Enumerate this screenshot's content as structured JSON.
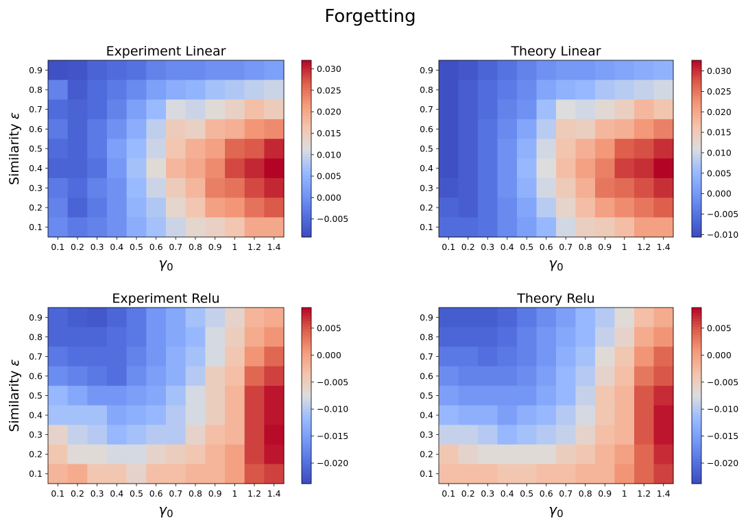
{
  "suptitle": "Forgetting",
  "chart_data": [
    {
      "type": "heatmap",
      "title": "Experiment Linear",
      "xlabel_symbol": "γ",
      "xlabel_subscript": "0",
      "ylabel": "Similarity",
      "ylabel_symbol": "ε",
      "x": [
        "0.1",
        "0.2",
        "0.3",
        "0.4",
        "0.5",
        "0.6",
        "0.7",
        "0.8",
        "0.9",
        "1",
        "1.2",
        "1.4"
      ],
      "y": [
        "0.9",
        "0.8",
        "0.7",
        "0.6",
        "0.5",
        "0.4",
        "0.3",
        "0.2",
        "0.1"
      ],
      "colormap": "coolwarm",
      "vmin": -0.0092,
      "vmax": 0.032,
      "colorbar_ticks": [
        -0.005,
        0.0,
        0.005,
        0.01,
        0.015,
        0.02,
        0.025,
        0.03
      ],
      "colorbar_tick_labels": [
        "−0.005",
        "0.000",
        "0.005",
        "0.010",
        "0.015",
        "0.020",
        "0.025",
        "0.030"
      ],
      "values": [
        [
          -0.0085,
          -0.008,
          -0.006,
          -0.005,
          -0.004,
          -0.002,
          -0.001,
          -0.001,
          0.0,
          0.0,
          0.001,
          0.002
        ],
        [
          -0.002,
          -0.007,
          -0.005,
          -0.003,
          -0.001,
          0.002,
          0.004,
          0.005,
          0.007,
          0.008,
          0.009,
          0.01
        ],
        [
          -0.005,
          -0.006,
          -0.005,
          -0.002,
          0.002,
          0.006,
          0.011,
          0.01,
          0.012,
          0.014,
          0.017,
          0.015
        ],
        [
          -0.003,
          -0.006,
          -0.003,
          0.0,
          0.004,
          0.009,
          0.015,
          0.014,
          0.018,
          0.019,
          0.022,
          0.023
        ],
        [
          -0.005,
          -0.006,
          -0.003,
          0.002,
          0.006,
          0.01,
          0.016,
          0.019,
          0.021,
          0.026,
          0.027,
          0.03
        ],
        [
          -0.006,
          -0.006,
          -0.004,
          0.001,
          0.007,
          0.012,
          0.018,
          0.02,
          0.023,
          0.028,
          0.03,
          0.032
        ],
        [
          -0.003,
          -0.005,
          -0.002,
          0.0,
          0.006,
          0.01,
          0.015,
          0.018,
          0.024,
          0.025,
          0.028,
          0.03
        ],
        [
          -0.002,
          -0.006,
          -0.003,
          0.0,
          0.005,
          0.008,
          0.013,
          0.016,
          0.021,
          0.022,
          0.025,
          0.027
        ],
        [
          -0.001,
          -0.003,
          -0.002,
          0.0,
          0.004,
          0.007,
          0.01,
          0.013,
          0.014,
          0.016,
          0.02,
          0.02
        ]
      ]
    },
    {
      "type": "heatmap",
      "title": "Theory Linear",
      "xlabel_symbol": "γ",
      "xlabel_subscript": "0",
      "ylabel": "",
      "ylabel_symbol": "",
      "x": [
        "0.1",
        "0.2",
        "0.3",
        "0.4",
        "0.5",
        "0.6",
        "0.7",
        "0.8",
        "0.9",
        "1",
        "1.2",
        "1.4"
      ],
      "y": [
        "0.9",
        "0.8",
        "0.7",
        "0.6",
        "0.5",
        "0.4",
        "0.3",
        "0.2",
        "0.1"
      ],
      "colormap": "coolwarm",
      "vmin": -0.0106,
      "vmax": 0.0326,
      "colorbar_ticks": [
        -0.01,
        -0.005,
        0.0,
        0.005,
        0.01,
        0.015,
        0.02,
        0.025,
        0.03
      ],
      "colorbar_tick_labels": [
        "−0.010",
        "−0.005",
        "0.000",
        "0.005",
        "0.010",
        "0.015",
        "0.020",
        "0.025",
        "0.030"
      ],
      "values": [
        [
          -0.01,
          -0.009,
          -0.007,
          -0.005,
          -0.003,
          -0.001,
          0.0,
          0.0,
          0.001,
          0.002,
          0.003,
          0.004
        ],
        [
          -0.01,
          -0.008,
          -0.006,
          -0.004,
          -0.002,
          0.002,
          0.004,
          0.005,
          0.007,
          0.008,
          0.009,
          0.01
        ],
        [
          -0.01,
          -0.008,
          -0.006,
          -0.003,
          -0.001,
          0.006,
          0.011,
          0.01,
          0.012,
          0.014,
          0.018,
          0.016
        ],
        [
          -0.01,
          -0.008,
          -0.005,
          -0.002,
          0.002,
          0.008,
          0.015,
          0.014,
          0.018,
          0.019,
          0.022,
          0.024
        ],
        [
          -0.01,
          -0.008,
          -0.005,
          -0.001,
          0.004,
          0.01,
          0.016,
          0.019,
          0.022,
          0.027,
          0.028,
          0.03
        ],
        [
          -0.01,
          -0.008,
          -0.005,
          -0.001,
          0.005,
          0.011,
          0.017,
          0.021,
          0.024,
          0.029,
          0.03,
          0.033
        ],
        [
          -0.009,
          -0.008,
          -0.005,
          -0.001,
          0.004,
          0.01,
          0.015,
          0.019,
          0.025,
          0.026,
          0.028,
          0.03
        ],
        [
          -0.007,
          -0.008,
          -0.005,
          -0.002,
          0.002,
          0.008,
          0.013,
          0.017,
          0.021,
          0.023,
          0.025,
          0.027
        ],
        [
          -0.006,
          -0.006,
          -0.005,
          -0.002,
          0.001,
          0.005,
          0.01,
          0.014,
          0.015,
          0.017,
          0.021,
          0.021
        ]
      ]
    },
    {
      "type": "heatmap",
      "title": "Experiment Relu",
      "xlabel_symbol": "γ",
      "xlabel_subscript": "0",
      "ylabel": "Similarity",
      "ylabel_symbol": "ε",
      "x": [
        "0.1",
        "0.2",
        "0.3",
        "0.4",
        "0.5",
        "0.6",
        "0.7",
        "0.8",
        "0.9",
        "1",
        "1.2",
        "1.4"
      ],
      "y": [
        "0.9",
        "0.8",
        "0.7",
        "0.6",
        "0.5",
        "0.4",
        "0.3",
        "0.2",
        "0.1"
      ],
      "colormap": "coolwarm",
      "vmin": -0.0238,
      "vmax": 0.0088,
      "colorbar_ticks": [
        -0.02,
        -0.015,
        -0.01,
        -0.005,
        0.0,
        0.005
      ],
      "colorbar_tick_labels": [
        "−0.020",
        "−0.015",
        "−0.010",
        "−0.005",
        "0.000",
        "0.005"
      ],
      "values": [
        [
          -0.021,
          -0.022,
          -0.0225,
          -0.021,
          -0.019,
          -0.016,
          -0.014,
          -0.011,
          -0.009,
          -0.006,
          -0.002,
          -0.001
        ],
        [
          -0.021,
          -0.021,
          -0.021,
          -0.02,
          -0.019,
          -0.016,
          -0.014,
          -0.012,
          -0.008,
          -0.005,
          -0.001,
          0.001
        ],
        [
          -0.019,
          -0.02,
          -0.02,
          -0.02,
          -0.018,
          -0.016,
          -0.013,
          -0.011,
          -0.008,
          -0.004,
          0.001,
          0.004
        ],
        [
          -0.017,
          -0.018,
          -0.019,
          -0.02,
          -0.017,
          -0.015,
          -0.013,
          -0.01,
          -0.005,
          -0.003,
          0.004,
          0.006
        ],
        [
          -0.012,
          -0.014,
          -0.016,
          -0.016,
          -0.015,
          -0.014,
          -0.011,
          -0.008,
          -0.005,
          -0.002,
          0.006,
          0.008
        ],
        [
          -0.011,
          -0.011,
          -0.011,
          -0.014,
          -0.013,
          -0.012,
          -0.01,
          -0.008,
          -0.005,
          -0.002,
          0.006,
          0.008
        ],
        [
          -0.006,
          -0.009,
          -0.01,
          -0.012,
          -0.011,
          -0.01,
          -0.01,
          -0.006,
          -0.003,
          -0.002,
          0.006,
          0.0085
        ],
        [
          -0.004,
          -0.007,
          -0.007,
          -0.008,
          -0.008,
          -0.006,
          -0.005,
          -0.004,
          -0.002,
          0.0,
          0.006,
          0.008
        ],
        [
          -0.002,
          -0.001,
          -0.004,
          -0.004,
          -0.006,
          -0.003,
          -0.003,
          -0.002,
          -0.002,
          0.0,
          0.005,
          0.006
        ]
      ]
    },
    {
      "type": "heatmap",
      "title": "Theory Relu",
      "xlabel_symbol": "γ",
      "xlabel_subscript": "0",
      "ylabel": "",
      "ylabel_symbol": "",
      "x": [
        "0.1",
        "0.2",
        "0.3",
        "0.4",
        "0.5",
        "0.6",
        "0.7",
        "0.8",
        "0.9",
        "1",
        "1.2",
        "1.4"
      ],
      "y": [
        "0.9",
        "0.8",
        "0.7",
        "0.6",
        "0.5",
        "0.4",
        "0.3",
        "0.2",
        "0.1"
      ],
      "colormap": "coolwarm",
      "vmin": -0.0238,
      "vmax": 0.0088,
      "colorbar_ticks": [
        -0.02,
        -0.015,
        -0.01,
        -0.005,
        0.0,
        0.005
      ],
      "colorbar_tick_labels": [
        "−0.020",
        "−0.015",
        "−0.010",
        "−0.005",
        "0.000",
        "0.005"
      ],
      "values": [
        [
          -0.022,
          -0.022,
          -0.022,
          -0.021,
          -0.019,
          -0.017,
          -0.015,
          -0.012,
          -0.01,
          -0.007,
          -0.003,
          -0.001
        ],
        [
          -0.021,
          -0.021,
          -0.021,
          -0.02,
          -0.018,
          -0.016,
          -0.014,
          -0.012,
          -0.009,
          -0.006,
          -0.001,
          0.001
        ],
        [
          -0.019,
          -0.019,
          -0.02,
          -0.019,
          -0.018,
          -0.016,
          -0.013,
          -0.011,
          -0.007,
          -0.004,
          0.001,
          0.004
        ],
        [
          -0.017,
          -0.018,
          -0.018,
          -0.018,
          -0.017,
          -0.015,
          -0.012,
          -0.01,
          -0.006,
          -0.003,
          0.003,
          0.005
        ],
        [
          -0.015,
          -0.016,
          -0.016,
          -0.016,
          -0.016,
          -0.014,
          -0.012,
          -0.009,
          -0.004,
          -0.002,
          0.005,
          0.007
        ],
        [
          -0.012,
          -0.013,
          -0.013,
          -0.015,
          -0.013,
          -0.012,
          -0.01,
          -0.008,
          -0.004,
          -0.002,
          0.005,
          0.008
        ],
        [
          -0.009,
          -0.009,
          -0.01,
          -0.012,
          -0.011,
          -0.01,
          -0.009,
          -0.006,
          -0.003,
          -0.002,
          0.005,
          0.008
        ],
        [
          -0.004,
          -0.006,
          -0.007,
          -0.007,
          -0.007,
          -0.007,
          -0.005,
          -0.004,
          -0.002,
          0.0,
          0.004,
          0.007
        ],
        [
          -0.003,
          -0.003,
          -0.003,
          -0.004,
          -0.004,
          -0.003,
          -0.003,
          -0.002,
          -0.002,
          0.001,
          0.004,
          0.006
        ]
      ]
    }
  ]
}
